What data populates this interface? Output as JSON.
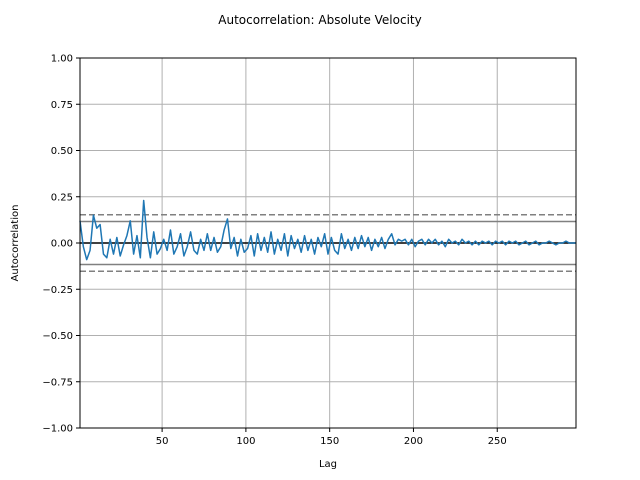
{
  "chart_data": {
    "type": "line",
    "title": "Autocorrelation: Absolute Velocity",
    "xlabel": "Lag",
    "ylabel": "Autocorrelation",
    "xlim": [
      1,
      297
    ],
    "ylim": [
      -1.0,
      1.0
    ],
    "grid": true,
    "x_ticks": [
      50,
      100,
      150,
      200,
      250
    ],
    "x_tick_labels": [
      "50",
      "100",
      "150",
      "200",
      "250"
    ],
    "y_ticks": [
      -1.0,
      -0.75,
      -0.5,
      -0.25,
      0.0,
      0.25,
      0.5,
      0.75,
      1.0
    ],
    "y_tick_labels": [
      "−1.00",
      "−0.75",
      "−0.50",
      "−0.25",
      "0.00",
      "0.25",
      "0.50",
      "0.75",
      "1.00"
    ],
    "reference_lines": [
      {
        "y": 0.0,
        "style": "solid",
        "color": "#000000"
      },
      {
        "y": 0.116,
        "style": "solid",
        "color": "#808080"
      },
      {
        "y": -0.116,
        "style": "solid",
        "color": "#808080"
      },
      {
        "y": 0.153,
        "style": "dashed",
        "color": "#808080"
      },
      {
        "y": -0.153,
        "style": "dashed",
        "color": "#808080"
      }
    ],
    "series": [
      {
        "color": "#1f77b4",
        "points": [
          [
            1,
            0.12
          ],
          [
            3,
            -0.02
          ],
          [
            5,
            -0.09
          ],
          [
            7,
            -0.04
          ],
          [
            9,
            0.15
          ],
          [
            11,
            0.08
          ],
          [
            13,
            0.1
          ],
          [
            15,
            -0.06
          ],
          [
            17,
            -0.08
          ],
          [
            19,
            0.02
          ],
          [
            21,
            -0.06
          ],
          [
            23,
            0.03
          ],
          [
            25,
            -0.07
          ],
          [
            27,
            -0.01
          ],
          [
            29,
            0.04
          ],
          [
            31,
            0.12
          ],
          [
            33,
            -0.06
          ],
          [
            35,
            0.04
          ],
          [
            37,
            -0.08
          ],
          [
            39,
            0.23
          ],
          [
            41,
            0.03
          ],
          [
            43,
            -0.08
          ],
          [
            45,
            0.06
          ],
          [
            47,
            -0.06
          ],
          [
            49,
            -0.03
          ],
          [
            51,
            0.02
          ],
          [
            53,
            -0.04
          ],
          [
            55,
            0.07
          ],
          [
            57,
            -0.06
          ],
          [
            59,
            -0.02
          ],
          [
            61,
            0.05
          ],
          [
            63,
            -0.07
          ],
          [
            65,
            -0.02
          ],
          [
            67,
            0.06
          ],
          [
            69,
            -0.04
          ],
          [
            71,
            -0.06
          ],
          [
            73,
            0.02
          ],
          [
            75,
            -0.04
          ],
          [
            77,
            0.05
          ],
          [
            79,
            -0.04
          ],
          [
            81,
            0.03
          ],
          [
            83,
            -0.05
          ],
          [
            85,
            -0.02
          ],
          [
            87,
            0.07
          ],
          [
            89,
            0.13
          ],
          [
            91,
            -0.03
          ],
          [
            93,
            0.03
          ],
          [
            95,
            -0.07
          ],
          [
            97,
            0.02
          ],
          [
            99,
            -0.05
          ],
          [
            101,
            -0.03
          ],
          [
            103,
            0.04
          ],
          [
            105,
            -0.07
          ],
          [
            107,
            0.05
          ],
          [
            109,
            -0.04
          ],
          [
            111,
            0.03
          ],
          [
            113,
            -0.05
          ],
          [
            115,
            0.06
          ],
          [
            117,
            -0.06
          ],
          [
            119,
            0.02
          ],
          [
            121,
            -0.04
          ],
          [
            123,
            0.05
          ],
          [
            125,
            -0.07
          ],
          [
            127,
            0.04
          ],
          [
            129,
            -0.03
          ],
          [
            131,
            0.02
          ],
          [
            133,
            -0.05
          ],
          [
            135,
            0.04
          ],
          [
            137,
            -0.04
          ],
          [
            139,
            0.02
          ],
          [
            141,
            -0.06
          ],
          [
            143,
            0.03
          ],
          [
            145,
            -0.02
          ],
          [
            147,
            0.05
          ],
          [
            149,
            -0.06
          ],
          [
            151,
            0.03
          ],
          [
            153,
            -0.04
          ],
          [
            155,
            -0.06
          ],
          [
            157,
            0.05
          ],
          [
            159,
            -0.03
          ],
          [
            161,
            0.02
          ],
          [
            163,
            -0.04
          ],
          [
            165,
            0.03
          ],
          [
            167,
            -0.03
          ],
          [
            169,
            0.04
          ],
          [
            171,
            -0.02
          ],
          [
            173,
            0.03
          ],
          [
            175,
            -0.04
          ],
          [
            177,
            0.02
          ],
          [
            179,
            -0.02
          ],
          [
            181,
            0.03
          ],
          [
            183,
            -0.03
          ],
          [
            185,
            0.02
          ],
          [
            187,
            0.05
          ],
          [
            189,
            -0.01
          ],
          [
            191,
            0.02
          ],
          [
            193,
            0.01
          ],
          [
            195,
            0.02
          ],
          [
            197,
            -0.01
          ],
          [
            199,
            0.02
          ],
          [
            201,
            -0.02
          ],
          [
            203,
            0.01
          ],
          [
            205,
            0.02
          ],
          [
            207,
            -0.01
          ],
          [
            209,
            0.02
          ],
          [
            211,
            0.0
          ],
          [
            213,
            0.02
          ],
          [
            215,
            -0.01
          ],
          [
            217,
            0.01
          ],
          [
            219,
            -0.02
          ],
          [
            221,
            0.02
          ],
          [
            223,
            0.0
          ],
          [
            225,
            0.01
          ],
          [
            227,
            -0.01
          ],
          [
            229,
            0.02
          ],
          [
            231,
            0.0
          ],
          [
            233,
            0.01
          ],
          [
            235,
            -0.01
          ],
          [
            237,
            0.01
          ],
          [
            239,
            -0.01
          ],
          [
            241,
            0.01
          ],
          [
            243,
            0.0
          ],
          [
            245,
            0.01
          ],
          [
            247,
            -0.01
          ],
          [
            249,
            0.01
          ],
          [
            251,
            0.0
          ],
          [
            253,
            0.01
          ],
          [
            255,
            -0.01
          ],
          [
            257,
            0.01
          ],
          [
            259,
            0.0
          ],
          [
            261,
            0.01
          ],
          [
            263,
            -0.01
          ],
          [
            265,
            0.0
          ],
          [
            267,
            0.01
          ],
          [
            269,
            -0.01
          ],
          [
            271,
            0.0
          ],
          [
            273,
            0.01
          ],
          [
            275,
            -0.01
          ],
          [
            277,
            0.0
          ],
          [
            279,
            0.0
          ],
          [
            281,
            0.01
          ],
          [
            283,
            0.0
          ],
          [
            285,
            -0.01
          ],
          [
            287,
            0.0
          ],
          [
            289,
            0.0
          ],
          [
            291,
            0.01
          ],
          [
            293,
            0.0
          ],
          [
            295,
            0.0
          ],
          [
            297,
            0.0
          ]
        ]
      }
    ]
  }
}
